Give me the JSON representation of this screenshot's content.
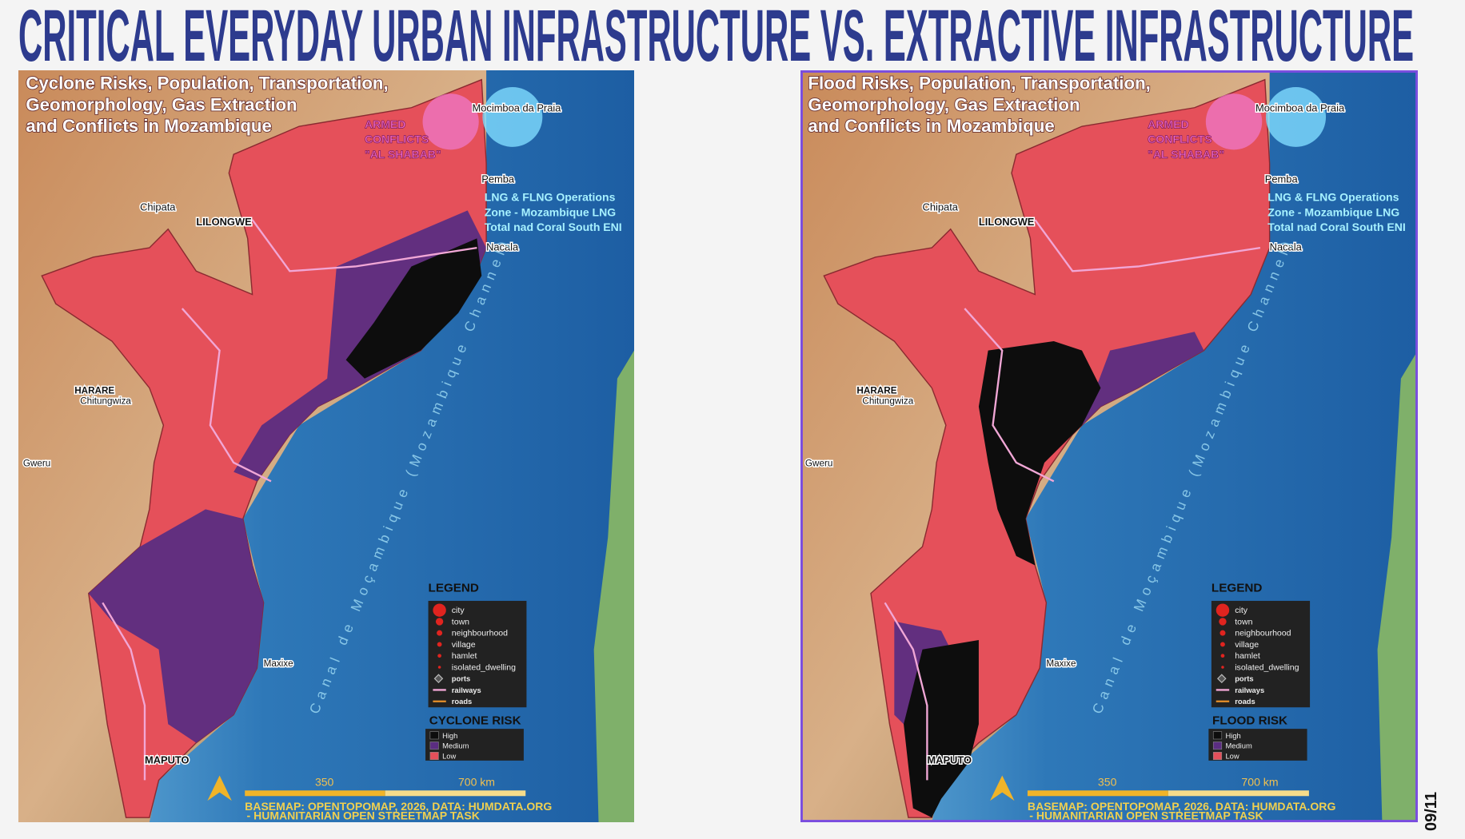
{
  "header": {
    "title": "CRITICAL EVERYDAY URBAN INFRASTRUCTURE VS. EXTRACTIVE INFRASTRUCTURE",
    "page": "09/11"
  },
  "maps": [
    {
      "title_lines": [
        "Cyclone Risks, Population, Transportation,",
        "Geomorphology, Gas Extraction",
        "and Conflicts in Mozambique"
      ],
      "risk_title": "CYCLONE RISK"
    },
    {
      "title_lines": [
        "Flood Risks, Population, Transportation,",
        "Geomorphology, Gas Extraction",
        "and Conflicts in Mozambique"
      ],
      "risk_title": "FLOOD RISK"
    }
  ],
  "map_common": {
    "conflict_lines": [
      "ARMED",
      "CONFLICTS",
      "\"AL SHABAB\""
    ],
    "lng_lines": [
      "LNG & FLNG Operations",
      "Zone - Mozambique LNG",
      "Total nad Coral South ENI"
    ],
    "places": [
      "Mocimboa da Praia",
      "Pemba",
      "Nacala",
      "Chipata",
      "LILONGWE",
      "HARARE",
      "Chitungwiza",
      "Gweru",
      "Maxixe",
      "MAPUTO"
    ],
    "channel": "Canal de Moçambique (Mozambique Channel)",
    "legend_title": "LEGEND",
    "legend_items": [
      "city",
      "town",
      "neighbourhood",
      "village",
      "hamlet",
      "isolated_dwelling",
      "ports",
      "railways",
      "roads"
    ],
    "risk_levels": [
      "High",
      "Medium",
      "Low"
    ],
    "scale_labels": [
      "350",
      "700 km"
    ],
    "credit_lines": [
      "BASEMAP: OPENTOPOMAP, 2026, DATA: HUMDATA.ORG",
      "- HUMANITARIAN OPEN STREETMAP TASK"
    ]
  }
}
